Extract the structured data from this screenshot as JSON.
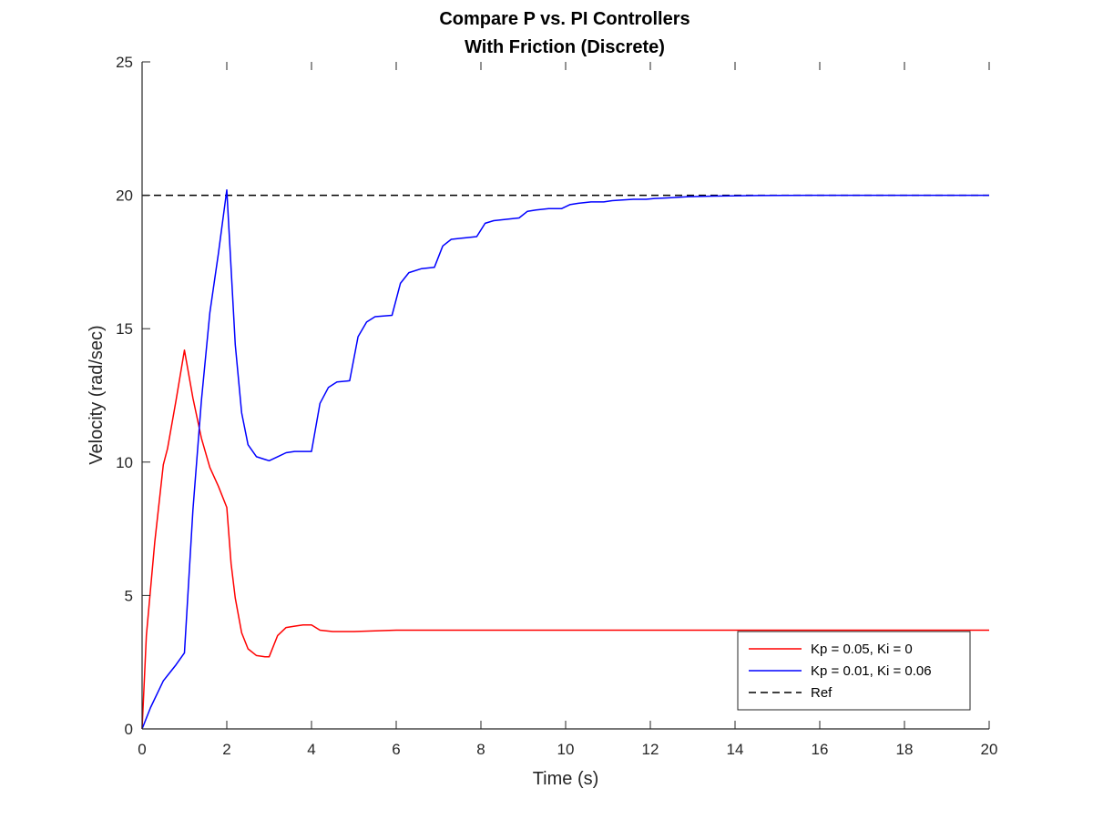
{
  "chart_data": {
    "type": "line",
    "title": [
      "Compare P vs. PI Controllers",
      "With Friction (Discrete)"
    ],
    "xlabel": "Time (s)",
    "ylabel": "Velocity (rad/sec)",
    "xlim": [
      0,
      20
    ],
    "ylim": [
      0,
      25
    ],
    "xticks": [
      0,
      2,
      4,
      6,
      8,
      10,
      12,
      14,
      16,
      18,
      20
    ],
    "yticks": [
      0,
      5,
      10,
      15,
      20,
      25
    ],
    "xtick_labels": [
      "0",
      "2",
      "4",
      "6",
      "8",
      "10",
      "12",
      "14",
      "16",
      "18",
      "20"
    ],
    "ytick_labels": [
      "0",
      "5",
      "10",
      "15",
      "20",
      "25"
    ],
    "grid": false,
    "legend_position": "bottom-right",
    "series": [
      {
        "name": "Kp = 0.05, Ki = 0",
        "color": "#ff0000",
        "dash": "solid",
        "x": [
          0,
          0.1,
          0.3,
          0.5,
          0.6,
          0.8,
          1.0,
          1.2,
          1.4,
          1.6,
          1.8,
          2.0,
          2.1,
          2.2,
          2.35,
          2.5,
          2.7,
          2.9,
          3.0,
          3.2,
          3.4,
          3.6,
          3.8,
          4.0,
          4.2,
          4.5,
          5.0,
          6.0,
          7.0,
          10.0,
          15.0,
          20.0
        ],
        "y": [
          0,
          3.5,
          7.0,
          9.9,
          10.5,
          12.3,
          14.2,
          12.4,
          10.9,
          9.8,
          9.1,
          8.3,
          6.2,
          4.9,
          3.6,
          3.0,
          2.75,
          2.7,
          2.7,
          3.5,
          3.8,
          3.85,
          3.9,
          3.9,
          3.7,
          3.65,
          3.65,
          3.7,
          3.7,
          3.7,
          3.7,
          3.7
        ]
      },
      {
        "name": "Kp = 0.01, Ki = 0.06",
        "color": "#0000ff",
        "dash": "solid",
        "x": [
          0,
          0.2,
          0.5,
          0.6,
          0.8,
          1.0,
          1.2,
          1.4,
          1.6,
          1.8,
          2.0,
          2.2,
          2.35,
          2.5,
          2.7,
          2.9,
          3.0,
          3.2,
          3.4,
          3.6,
          3.8,
          4.0,
          4.2,
          4.4,
          4.6,
          4.9,
          5.1,
          5.3,
          5.5,
          5.9,
          6.1,
          6.3,
          6.6,
          6.9,
          7.1,
          7.3,
          7.6,
          7.9,
          8.1,
          8.3,
          8.6,
          8.9,
          9.1,
          9.3,
          9.6,
          9.9,
          10.1,
          10.3,
          10.6,
          10.9,
          11.1,
          11.3,
          11.6,
          11.9,
          12.1,
          12.4,
          12.9,
          13.5,
          14.5,
          16.0,
          18.0,
          20.0
        ],
        "y": [
          0,
          0.8,
          1.8,
          2.0,
          2.4,
          2.85,
          8.2,
          12.3,
          15.6,
          17.8,
          20.2,
          14.4,
          11.85,
          10.65,
          10.2,
          10.1,
          10.05,
          10.2,
          10.35,
          10.4,
          10.4,
          10.4,
          12.2,
          12.8,
          13.0,
          13.05,
          14.7,
          15.25,
          15.45,
          15.5,
          16.7,
          17.1,
          17.25,
          17.3,
          18.1,
          18.35,
          18.4,
          18.45,
          18.95,
          19.05,
          19.1,
          19.15,
          19.4,
          19.45,
          19.5,
          19.5,
          19.65,
          19.7,
          19.75,
          19.75,
          19.8,
          19.82,
          19.85,
          19.85,
          19.88,
          19.9,
          19.95,
          19.97,
          19.99,
          20.0,
          20.0,
          20.0
        ]
      },
      {
        "name": "Ref",
        "color": "#000000",
        "dash": "dashed",
        "x": [
          0,
          20
        ],
        "y": [
          20,
          20
        ]
      }
    ]
  }
}
